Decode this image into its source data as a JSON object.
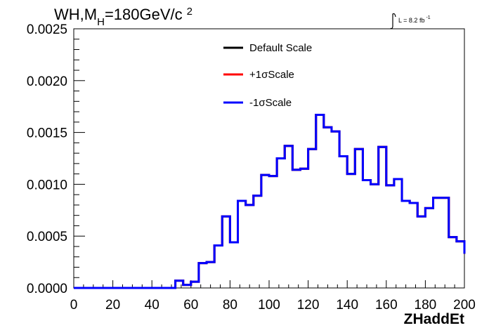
{
  "chart_data": {
    "type": "line",
    "style": "step-histogram",
    "title_main": "WH,M",
    "title_sub": "H",
    "title_rest": "=180GeV/c",
    "title_sup": "2",
    "lumi_main": "L = 8.2 fb",
    "lumi_sup": "-1",
    "xlabel": "ZHaddEt",
    "ylabel": "",
    "xlim": [
      0,
      200
    ],
    "ylim": [
      0,
      0.0025
    ],
    "x_ticks": [
      0,
      20,
      40,
      60,
      80,
      100,
      120,
      140,
      160,
      180,
      200
    ],
    "x_tick_labels": [
      "0",
      "20",
      "40",
      "60",
      "80",
      "100",
      "120",
      "140",
      "160",
      "180",
      "200"
    ],
    "y_ticks": [
      0,
      0.0005,
      0.001,
      0.0015,
      0.002,
      0.0025
    ],
    "y_tick_labels": [
      "0.0000",
      "0.0005",
      "0.0010",
      "0.0015",
      "0.0020",
      "0.0025"
    ],
    "bin_width": 4,
    "bin_edges_start": 0,
    "legend_position": "top-center",
    "series": [
      {
        "name": "Default Scale",
        "color": "#000000",
        "values": [
          0,
          0,
          0,
          0,
          0,
          0,
          0,
          0,
          0,
          0,
          0,
          0,
          0,
          7e-05,
          3e-05,
          6e-05,
          0.00024,
          0.00025,
          0.00041,
          0.00069,
          0.00044,
          0.00084,
          0.0008,
          0.00089,
          0.00109,
          0.00108,
          0.00125,
          0.00137,
          0.00114,
          0.00115,
          0.00134,
          0.00167,
          0.00155,
          0.00151,
          0.00127,
          0.0011,
          0.00134,
          0.00104,
          0.001,
          0.00136,
          0.00099,
          0.00105,
          0.00084,
          0.00082,
          0.00069,
          0.00077,
          0.00087,
          0.00087,
          0.00049,
          0.00045,
          0.00033
        ]
      },
      {
        "name": "+1σScale",
        "color": "#ff0000",
        "values": [
          0,
          0,
          0,
          0,
          0,
          0,
          0,
          0,
          0,
          0,
          0,
          0,
          0,
          7e-05,
          3e-05,
          6e-05,
          0.00024,
          0.00025,
          0.00041,
          0.00069,
          0.00044,
          0.00084,
          0.0008,
          0.00089,
          0.00109,
          0.00108,
          0.00125,
          0.00137,
          0.00114,
          0.00115,
          0.00134,
          0.00167,
          0.00155,
          0.00151,
          0.00127,
          0.0011,
          0.00134,
          0.00104,
          0.001,
          0.00136,
          0.00099,
          0.00105,
          0.00084,
          0.00082,
          0.00069,
          0.00077,
          0.00087,
          0.00087,
          0.00049,
          0.00045,
          0.00033
        ]
      },
      {
        "name": "-1σScale",
        "color": "#0000ff",
        "values": [
          0,
          0,
          0,
          0,
          0,
          0,
          0,
          0,
          0,
          0,
          0,
          0,
          0,
          7e-05,
          3e-05,
          6e-05,
          0.00024,
          0.00025,
          0.00041,
          0.00069,
          0.00044,
          0.00084,
          0.0008,
          0.00089,
          0.00109,
          0.00108,
          0.00125,
          0.00137,
          0.00114,
          0.00115,
          0.00134,
          0.00167,
          0.00155,
          0.00151,
          0.00127,
          0.0011,
          0.00134,
          0.00104,
          0.001,
          0.00136,
          0.00099,
          0.00105,
          0.00084,
          0.00082,
          0.00069,
          0.00077,
          0.00087,
          0.00087,
          0.00049,
          0.00045,
          0.00033
        ]
      }
    ]
  }
}
